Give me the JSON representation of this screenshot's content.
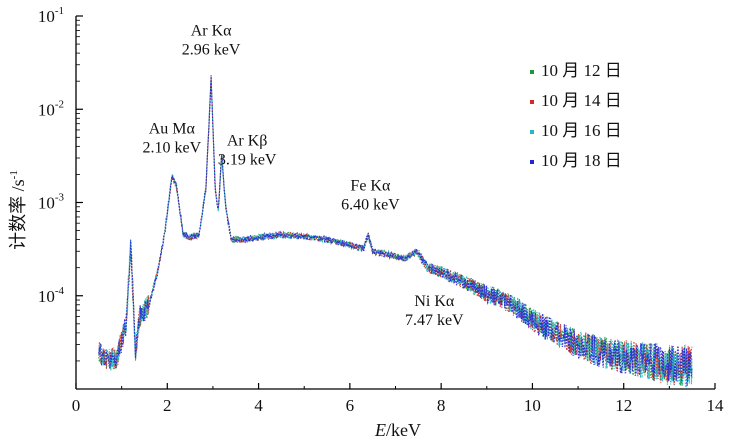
{
  "chart_data": {
    "type": "line",
    "title": "",
    "xlabel_italic": "E",
    "xlabel_unit": "/keV",
    "ylabel": "计数率 /s",
    "ylabel_sup": "-1",
    "y_scale": "log",
    "xlim": [
      0,
      14
    ],
    "ylim": [
      1e-05,
      0.1
    ],
    "x_ticks": [
      {
        "value": 0,
        "label": "0"
      },
      {
        "value": 2,
        "label": "2"
      },
      {
        "value": 4,
        "label": "4"
      },
      {
        "value": 6,
        "label": "6"
      },
      {
        "value": 8,
        "label": "8"
      },
      {
        "value": 10,
        "label": "10"
      },
      {
        "value": 12,
        "label": "12"
      },
      {
        "value": 14,
        "label": "14"
      }
    ],
    "y_ticks": [
      {
        "value": 0.1,
        "base": "10",
        "exp": "-1"
      },
      {
        "value": 0.01,
        "base": "10",
        "exp": "-2"
      },
      {
        "value": 0.001,
        "base": "10",
        "exp": "-3"
      },
      {
        "value": 0.0001,
        "base": "10",
        "exp": "-4"
      }
    ],
    "legend_position": "top-right",
    "series": [
      {
        "name": "10 月 12 日",
        "color": "#1a9a3a"
      },
      {
        "name": "10 月 14 日",
        "color": "#d42a2a"
      },
      {
        "name": "10 月 16 日",
        "color": "#22b8c8"
      },
      {
        "name": "10 月 18 日",
        "color": "#2424d8"
      }
    ],
    "spectrum_x": [
      0.5,
      0.7,
      0.9,
      1.1,
      1.2,
      1.3,
      1.4,
      1.6,
      1.8,
      1.95,
      2.1,
      2.2,
      2.35,
      2.5,
      2.7,
      2.85,
      2.96,
      3.05,
      3.12,
      3.19,
      3.28,
      3.4,
      3.7,
      4.0,
      4.5,
      5.0,
      5.5,
      6.0,
      6.3,
      6.4,
      6.5,
      6.8,
      7.2,
      7.47,
      7.7,
      8.0,
      8.5,
      9.0,
      9.5,
      10.0,
      10.5,
      11.0,
      11.5,
      12.0,
      12.5,
      13.0,
      13.5
    ],
    "spectrum_y": [
      2.5e-05,
      2e-05,
      2.2e-05,
      5e-05,
      0.00038,
      2.5e-05,
      6e-05,
      8e-05,
      0.00019,
      0.0005,
      0.0019,
      0.0015,
      0.00045,
      0.00042,
      0.00045,
      0.0015,
      0.022,
      0.0014,
      0.0008,
      0.0033,
      0.0009,
      0.0004,
      0.0004,
      0.00042,
      0.00045,
      0.00043,
      0.0004,
      0.00035,
      0.00032,
      0.00045,
      0.0003,
      0.00028,
      0.00025,
      0.0003,
      0.0002,
      0.00018,
      0.00014,
      0.000105,
      8.5e-05,
      5.5e-05,
      4e-05,
      3e-05,
      2.5e-05,
      2.2e-05,
      2e-05,
      1.8e-05,
      1.7e-05
    ],
    "annotations": [
      {
        "line1": "Ar Kα",
        "line2": "2.96 keV",
        "x": 2.96,
        "y": 0.062
      },
      {
        "line1": "Au Mα",
        "line2": "2.10 keV",
        "x": 2.1,
        "y": 0.0055
      },
      {
        "line1": "Ar Kβ",
        "line2": "3.19 keV",
        "x": 3.75,
        "y": 0.0041
      },
      {
        "line1": "Fe Kα",
        "line2": "6.40 keV",
        "x": 6.45,
        "y": 0.00135
      },
      {
        "line1": "Ni Kα",
        "line2": "7.47 keV",
        "x": 7.85,
        "y": 7.8e-05
      }
    ]
  }
}
